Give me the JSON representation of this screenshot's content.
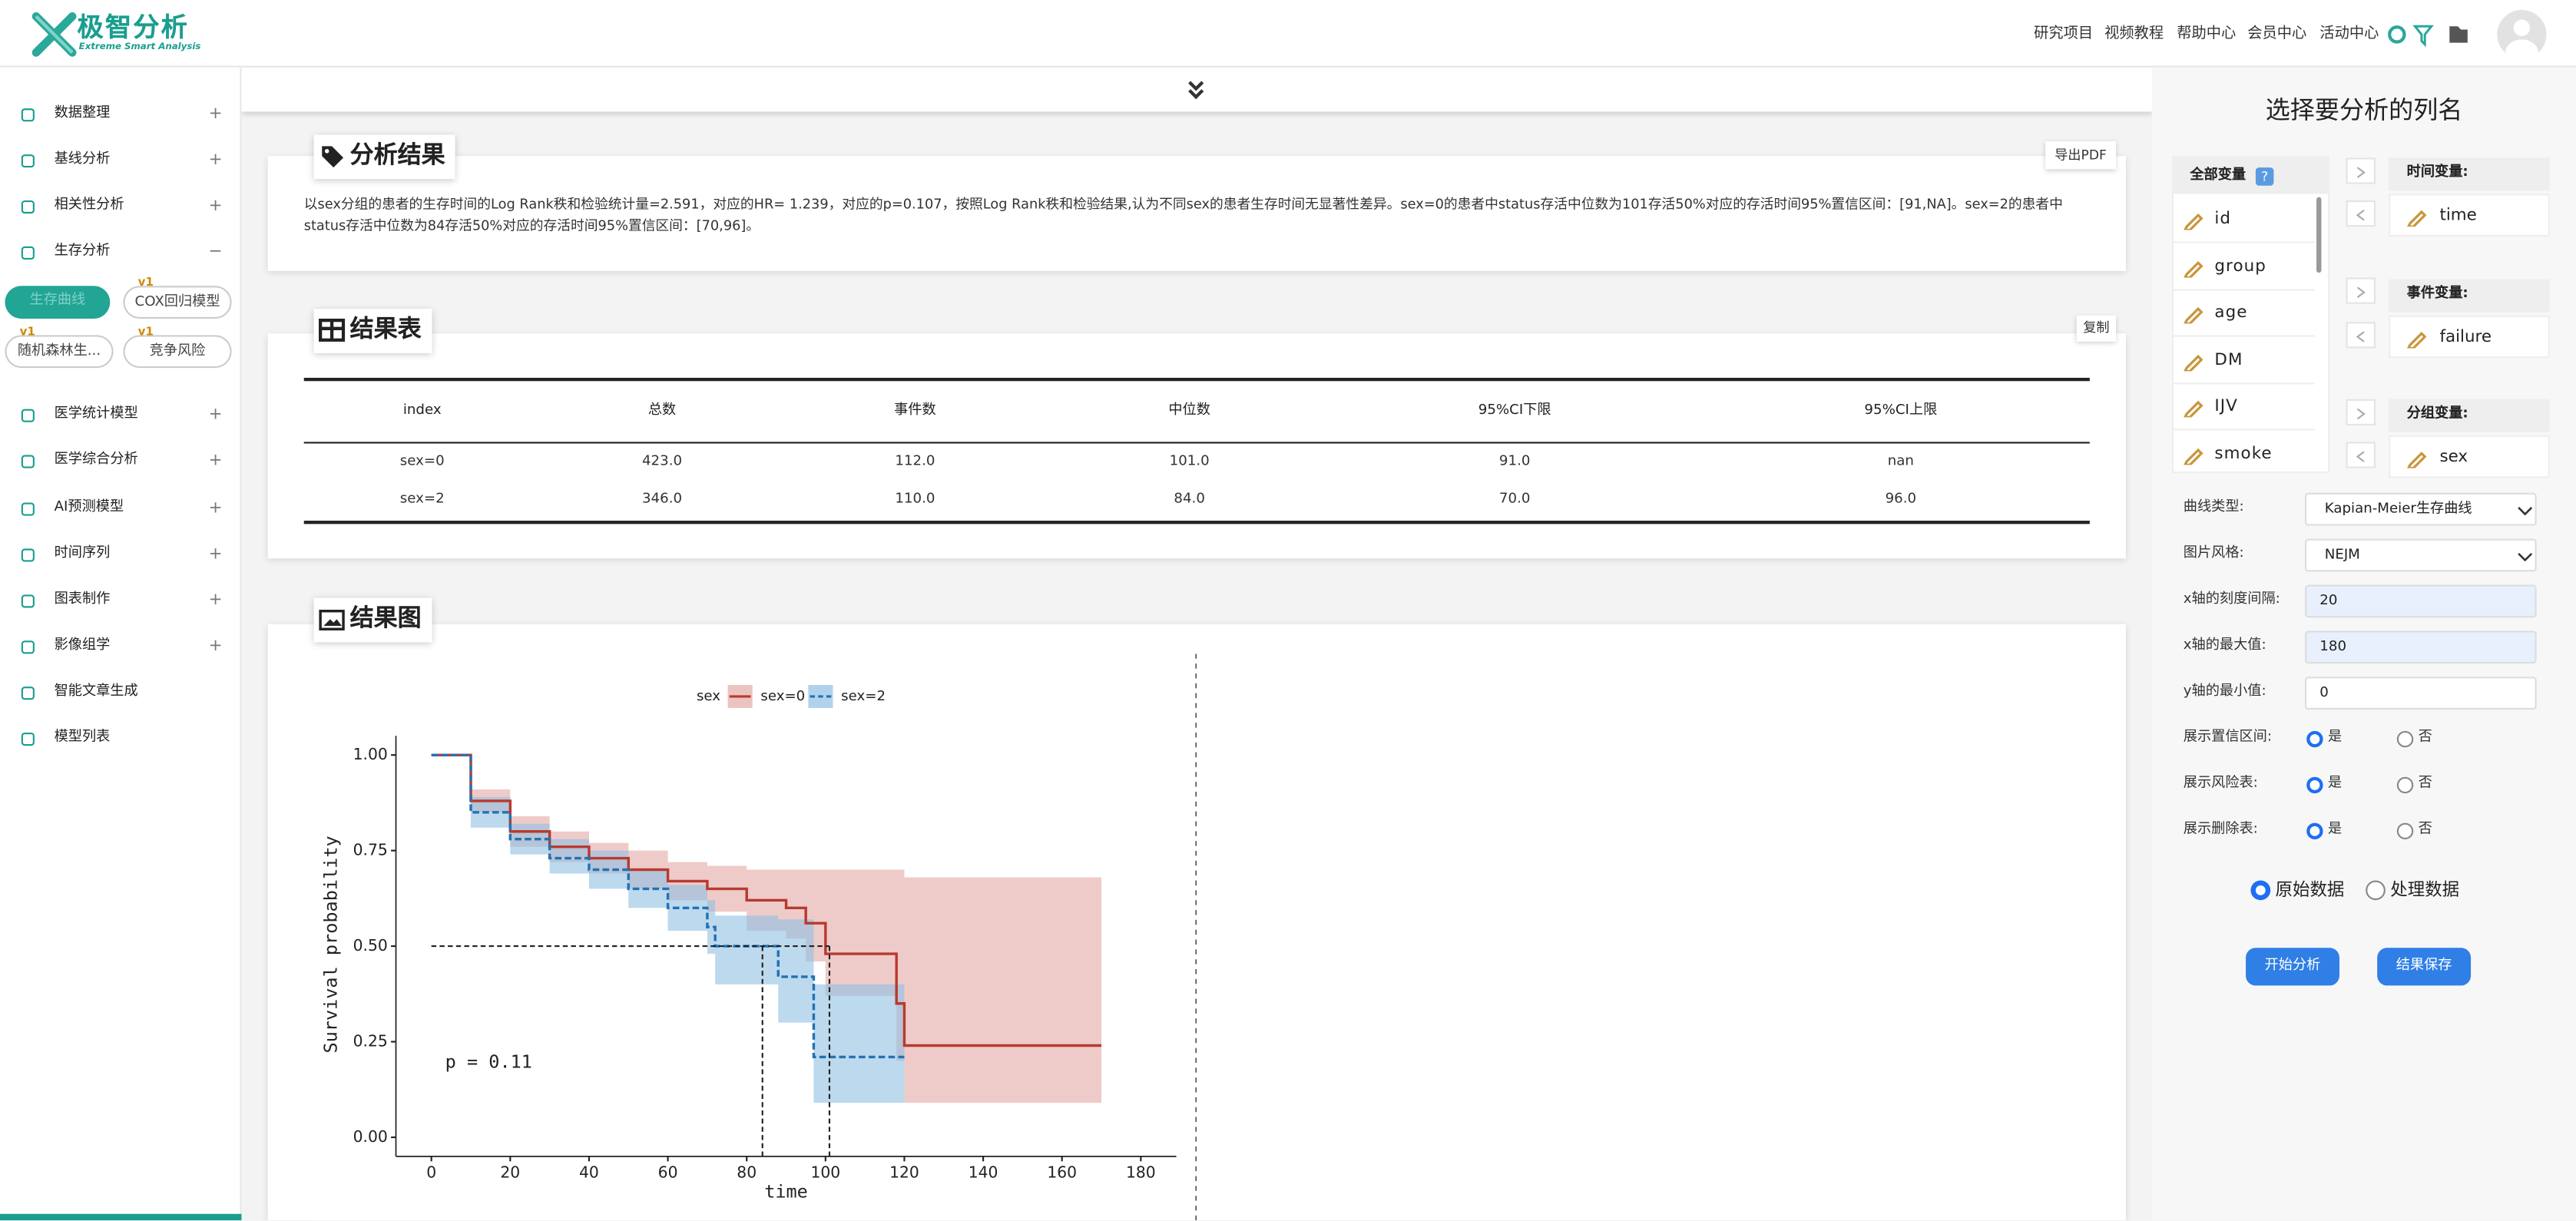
{
  "header": {
    "logo_title": "极智分析",
    "logo_subtitle": "Extreme Smart Analysis",
    "nav": [
      "研究项目",
      "视频教程",
      "帮助中心",
      "会员中心",
      "活动中心"
    ]
  },
  "sidebar": {
    "items": [
      {
        "label": "数据整理",
        "toggle": "+"
      },
      {
        "label": "基线分析",
        "toggle": "+"
      },
      {
        "label": "相关性分析",
        "toggle": "+"
      },
      {
        "label": "生存分析",
        "toggle": "−"
      },
      {
        "label": "医学统计模型",
        "toggle": "+"
      },
      {
        "label": "医学综合分析",
        "toggle": "+"
      },
      {
        "label": "AI预测模型",
        "toggle": "+"
      },
      {
        "label": "时间序列",
        "toggle": "+"
      },
      {
        "label": "图表制作",
        "toggle": "+"
      },
      {
        "label": "影像组学",
        "toggle": "+"
      },
      {
        "label": "智能文章生成"
      },
      {
        "label": "模型列表"
      }
    ],
    "sub_items": [
      {
        "label": "生存曲线"
      },
      {
        "label": "COX回归模型",
        "badge": "v1"
      },
      {
        "label": "随机森林生...",
        "badge": "v1"
      },
      {
        "label": "竞争风险",
        "badge": "v1"
      }
    ]
  },
  "results": {
    "title": "分析结果",
    "export_button": "导出PDF",
    "text": "以sex分组的患者的生存时间的Log Rank秩和检验统计量=2.591，对应的HR= 1.239，对应的p=0.107，按照Log Rank秩和检验结果,认为不同sex的患者生存时间无显著性差异。sex=0的患者中status存活中位数为101存活50%对应的存活时间95%置信区间：[91,NA]。sex=2的患者中status存活中位数为84存活50%对应的存活时间95%置信区间：[70,96]。"
  },
  "table_card": {
    "title": "结果表",
    "copy_button": "复制",
    "columns": [
      "index",
      "总数",
      "事件数",
      "中位数",
      "95%CI下限",
      "95%CI上限"
    ],
    "rows": [
      [
        "sex=0",
        "423.0",
        "112.0",
        "101.0",
        "91.0",
        "nan"
      ],
      [
        "sex=2",
        "346.0",
        "110.0",
        "84.0",
        "70.0",
        "96.0"
      ]
    ]
  },
  "figure_card": {
    "title": "结果图"
  },
  "chart_data": {
    "type": "km",
    "legend_title": "sex",
    "xlabel": "time",
    "ylabel": "Survival probability",
    "annotation": "p = 0.11",
    "xlim": [
      -9,
      189
    ],
    "xticks": [
      0,
      20,
      40,
      60,
      80,
      100,
      120,
      140,
      160,
      180
    ],
    "ylim": [
      -0.05,
      1.05
    ],
    "yticks": [
      {
        "value": 0,
        "label": "0.00"
      },
      {
        "value": 0.25,
        "label": "0.25"
      },
      {
        "value": 0.5,
        "label": "0.50"
      },
      {
        "value": 0.75,
        "label": "0.75"
      },
      {
        "value": 1,
        "label": "1.00"
      }
    ],
    "median_level": 0.5,
    "median_lines": [
      84,
      101
    ],
    "series": [
      {
        "name": "sex=0",
        "color": "#b83a2e",
        "band_color": "#e3a9a5",
        "dashed": false,
        "x": [
          0,
          10,
          20,
          30,
          40,
          50,
          60,
          70,
          80,
          90,
          95,
          100,
          118,
          120,
          170
        ],
        "values": [
          1,
          0.88,
          0.8,
          0.76,
          0.73,
          0.7,
          0.67,
          0.65,
          0.62,
          0.6,
          0.56,
          0.48,
          0.35,
          0.24,
          0.24
        ],
        "upper": [
          1,
          0.91,
          0.84,
          0.8,
          0.77,
          0.75,
          0.72,
          0.71,
          0.7,
          0.7,
          0.7,
          0.7,
          0.7,
          0.68,
          0.68
        ],
        "lower": [
          1,
          0.85,
          0.76,
          0.72,
          0.69,
          0.65,
          0.62,
          0.59,
          0.54,
          0.52,
          0.46,
          0.37,
          0.2,
          0.09,
          0.09
        ]
      },
      {
        "name": "sex=2",
        "color": "#2272b4",
        "band_color": "#8fc0e3",
        "dashed": true,
        "x": [
          0,
          10,
          20,
          30,
          40,
          50,
          60,
          70,
          72,
          88,
          95,
          97,
          120
        ],
        "values": [
          1,
          0.85,
          0.78,
          0.73,
          0.7,
          0.65,
          0.6,
          0.55,
          0.5,
          0.42,
          0.42,
          0.21,
          0.21
        ],
        "upper": [
          1,
          0.89,
          0.82,
          0.78,
          0.75,
          0.7,
          0.66,
          0.62,
          0.58,
          0.57,
          0.57,
          0.4,
          0.4
        ],
        "lower": [
          1,
          0.81,
          0.74,
          0.69,
          0.65,
          0.6,
          0.54,
          0.48,
          0.4,
          0.3,
          0.3,
          0.09,
          0.09
        ]
      }
    ]
  },
  "panel": {
    "title": "选择要分析的列名",
    "all_vars_label": "全部变量",
    "help": "?",
    "variables": [
      "id",
      "group",
      "age",
      "DM",
      "IJV",
      "smoke"
    ],
    "targets": [
      {
        "label": "时间变量:",
        "value": "time"
      },
      {
        "label": "事件变量:",
        "value": "failure"
      },
      {
        "label": "分组变量:",
        "value": "sex"
      }
    ],
    "fields": [
      {
        "label": "曲线类型:",
        "value": "Kapian-Meier生存曲线",
        "kind": "select"
      },
      {
        "label": "图片风格:",
        "value": "NEJM",
        "kind": "select"
      },
      {
        "label": "x轴的刻度间隔:",
        "value": "20",
        "kind": "input-filled"
      },
      {
        "label": "x轴的最大值:",
        "value": "180",
        "kind": "input-filled"
      },
      {
        "label": "y轴的最小值:",
        "value": "0",
        "kind": "input"
      }
    ],
    "radio_rows": [
      {
        "label": "展示置信区间:",
        "options": [
          "是",
          "否"
        ],
        "selected": 0
      },
      {
        "label": "展示风险表:",
        "options": [
          "是",
          "否"
        ],
        "selected": 0
      },
      {
        "label": "展示删除表:",
        "options": [
          "是",
          "否"
        ],
        "selected": 0
      }
    ],
    "data_source": {
      "options": [
        "原始数据",
        "处理数据"
      ],
      "selected": 0
    },
    "buttons": [
      "开始分析",
      "结果保存"
    ]
  }
}
